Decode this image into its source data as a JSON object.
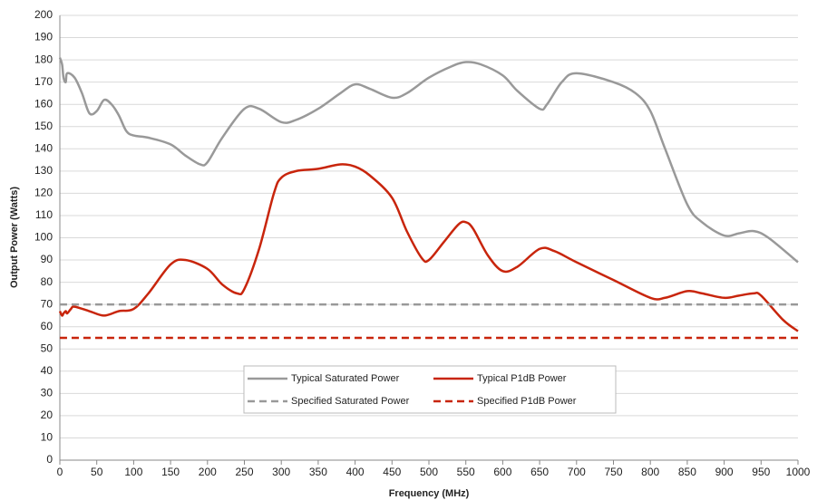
{
  "chart_data": {
    "type": "line",
    "x_label": "Frequency (MHz)",
    "y_label": "Output Power (Watts)",
    "xlim": [
      0,
      1000
    ],
    "xticks": [
      0,
      50,
      100,
      150,
      200,
      250,
      300,
      350,
      400,
      450,
      500,
      550,
      600,
      650,
      700,
      750,
      800,
      850,
      900,
      950,
      1000
    ],
    "ylim": [
      0,
      200
    ],
    "yticks": [
      0,
      10,
      20,
      30,
      40,
      50,
      60,
      70,
      80,
      90,
      100,
      110,
      120,
      130,
      140,
      150,
      160,
      170,
      180,
      190,
      200
    ],
    "grid": true,
    "legend": "lower-center",
    "series": [
      {
        "name": "Typical Saturated Power",
        "color": "#999999",
        "dashed": false,
        "x": [
          0,
          3,
          5,
          8,
          10,
          20,
          30,
          40,
          50,
          60,
          70,
          80,
          90,
          100,
          120,
          150,
          170,
          190,
          200,
          220,
          250,
          270,
          300,
          320,
          350,
          380,
          400,
          420,
          450,
          470,
          500,
          530,
          550,
          570,
          600,
          620,
          650,
          660,
          680,
          700,
          750,
          780,
          800,
          820,
          850,
          870,
          900,
          920,
          940,
          960,
          1000
        ],
        "values": [
          181,
          178,
          172,
          170,
          174,
          172,
          165,
          156,
          157,
          162,
          160,
          155,
          148,
          146,
          145,
          142,
          137,
          133,
          134,
          145,
          158,
          158,
          152,
          153,
          158,
          165,
          169,
          167,
          163,
          165,
          172,
          177,
          179,
          178,
          173,
          166,
          158,
          160,
          170,
          174,
          170,
          165,
          157,
          140,
          115,
          107,
          101,
          102,
          103,
          100,
          89
        ]
      },
      {
        "name": "Typical P1dB Power",
        "color": "#c8250c",
        "dashed": false,
        "x": [
          0,
          3,
          5,
          8,
          10,
          15,
          20,
          40,
          60,
          80,
          100,
          120,
          150,
          170,
          200,
          220,
          240,
          250,
          270,
          290,
          300,
          320,
          350,
          380,
          400,
          420,
          450,
          470,
          490,
          500,
          520,
          540,
          550,
          560,
          580,
          600,
          620,
          650,
          670,
          700,
          750,
          800,
          820,
          850,
          870,
          900,
          920,
          940,
          950,
          980,
          1000
        ],
        "values": [
          67,
          65,
          66,
          67,
          66,
          68,
          69,
          67,
          65,
          67,
          68,
          75,
          88,
          90,
          86,
          79,
          75,
          77,
          95,
          120,
          127,
          130,
          131,
          133,
          132,
          128,
          118,
          103,
          91,
          90,
          98,
          106,
          107,
          104,
          92,
          85,
          87,
          95,
          94,
          89,
          81,
          73,
          73,
          76,
          75,
          73,
          74,
          75,
          74,
          63,
          58
        ]
      },
      {
        "name": "Specified Saturated Power",
        "color": "#999999",
        "dashed": true,
        "x": [
          0,
          1000
        ],
        "values": [
          70,
          70
        ]
      },
      {
        "name": "Specified P1dB Power",
        "color": "#c8250c",
        "dashed": true,
        "x": [
          0,
          1000
        ],
        "values": [
          55,
          55
        ]
      }
    ]
  }
}
